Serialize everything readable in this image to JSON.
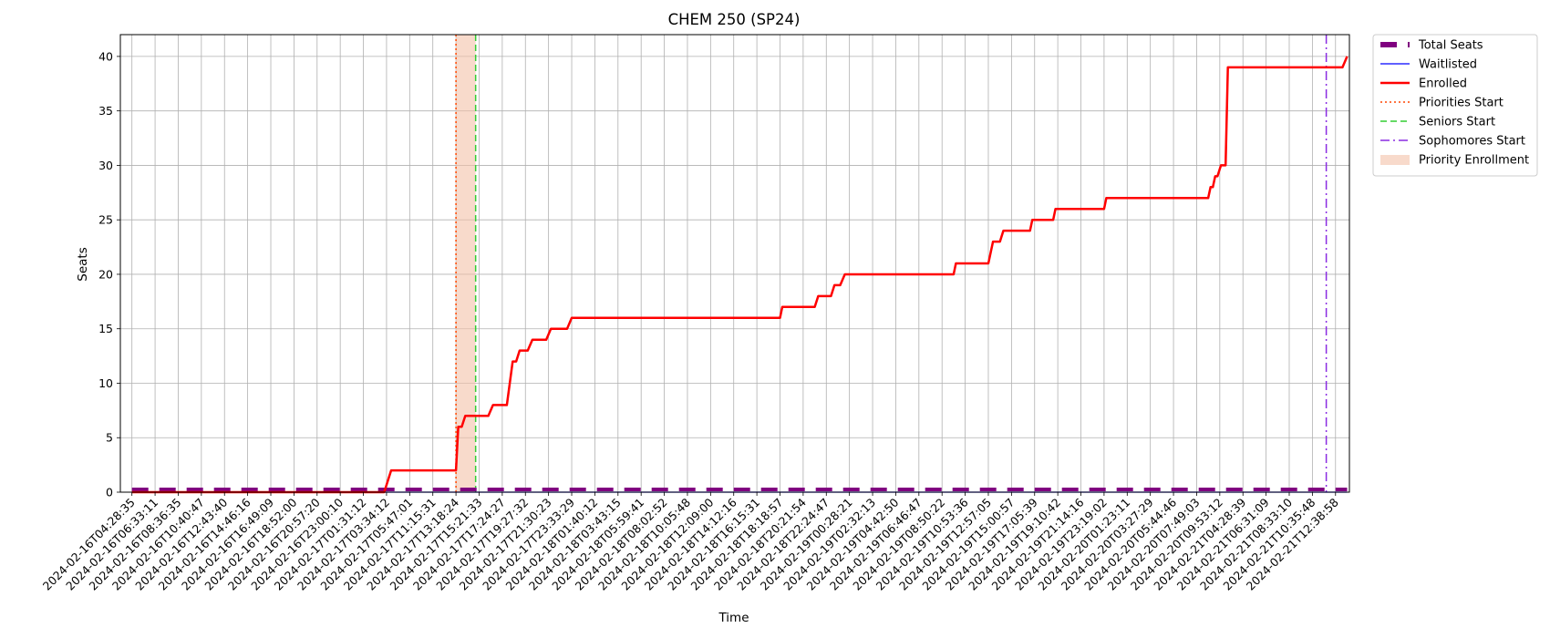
{
  "chart_data": {
    "type": "line",
    "title": "CHEM 250 (SP24)",
    "xlabel": "Time",
    "ylabel": "Seats",
    "ylim": [
      0,
      42
    ],
    "yticks": [
      0,
      5,
      10,
      15,
      20,
      25,
      30,
      35,
      40
    ],
    "grid": true,
    "legend_position": "outside-top-right",
    "x_tick_labels": [
      "2024-02-16T04:28:35",
      "2024-02-16T06:33:11",
      "2024-02-16T08:36:35",
      "2024-02-16T10:40:47",
      "2024-02-16T12:43:40",
      "2024-02-16T14:46:16",
      "2024-02-16T16:49:09",
      "2024-02-16T18:52:00",
      "2024-02-16T20:57:20",
      "2024-02-16T23:00:10",
      "2024-02-17T01:31:12",
      "2024-02-17T03:34:12",
      "2024-02-17T05:47:01",
      "2024-02-17T11:15:31",
      "2024-02-17T13:18:24",
      "2024-02-17T15:21:33",
      "2024-02-17T17:24:27",
      "2024-02-17T19:27:32",
      "2024-02-17T21:30:23",
      "2024-02-17T23:33:29",
      "2024-02-18T01:40:12",
      "2024-02-18T03:43:15",
      "2024-02-18T05:59:41",
      "2024-02-18T08:02:52",
      "2024-02-18T10:05:48",
      "2024-02-18T12:09:00",
      "2024-02-18T14:12:16",
      "2024-02-18T16:15:31",
      "2024-02-18T18:18:57",
      "2024-02-18T20:21:54",
      "2024-02-18T22:24:47",
      "2024-02-19T00:28:21",
      "2024-02-19T02:32:13",
      "2024-02-19T04:42:50",
      "2024-02-19T06:46:47",
      "2024-02-19T08:50:22",
      "2024-02-19T10:53:36",
      "2024-02-19T12:57:05",
      "2024-02-19T15:00:57",
      "2024-02-19T17:05:39",
      "2024-02-19T19:10:42",
      "2024-02-19T21:14:16",
      "2024-02-19T23:19:02",
      "2024-02-20T01:23:11",
      "2024-02-20T03:27:29",
      "2024-02-20T05:44:46",
      "2024-02-20T07:49:03",
      "2024-02-20T09:53:12",
      "2024-02-21T04:28:39",
      "2024-02-21T06:31:09",
      "2024-02-21T08:33:10",
      "2024-02-21T10:35:48",
      "2024-02-21T12:38:58"
    ],
    "series": [
      {
        "name": "Total Seats",
        "color": "#800080",
        "style": "dashed-thick",
        "points": [
          [
            0,
            0.25
          ],
          [
            52.5,
            0.25
          ]
        ]
      },
      {
        "name": "Waitlisted",
        "color": "#0000ff",
        "style": "solid-thin",
        "points": [
          [
            0,
            0
          ],
          [
            52.5,
            0
          ]
        ]
      },
      {
        "name": "Enrolled",
        "color": "#ff0000",
        "style": "solid-thick",
        "points": [
          [
            0,
            0
          ],
          [
            8.0,
            0
          ],
          [
            8.2,
            0
          ],
          [
            8.6,
            0
          ],
          [
            8.9,
            0
          ],
          [
            9.3,
            0
          ],
          [
            9.6,
            0
          ],
          [
            10.0,
            0
          ],
          [
            10.3,
            0
          ],
          [
            10.6,
            0
          ],
          [
            10.9,
            0
          ],
          [
            11.2,
            2
          ],
          [
            14.0,
            2
          ],
          [
            14.1,
            6
          ],
          [
            14.25,
            6
          ],
          [
            14.4,
            7
          ],
          [
            15.4,
            7
          ],
          [
            15.6,
            8
          ],
          [
            16.2,
            8
          ],
          [
            16.45,
            12
          ],
          [
            16.6,
            12
          ],
          [
            16.75,
            13
          ],
          [
            17.1,
            13
          ],
          [
            17.3,
            14
          ],
          [
            17.9,
            14
          ],
          [
            18.1,
            15
          ],
          [
            18.8,
            15
          ],
          [
            19.0,
            16
          ],
          [
            28.0,
            16
          ],
          [
            28.1,
            17
          ],
          [
            29.5,
            17
          ],
          [
            29.65,
            18
          ],
          [
            30.2,
            18
          ],
          [
            30.35,
            19
          ],
          [
            30.6,
            19
          ],
          [
            30.8,
            20
          ],
          [
            35.5,
            20
          ],
          [
            35.6,
            21
          ],
          [
            37.0,
            21
          ],
          [
            37.2,
            23
          ],
          [
            37.5,
            23
          ],
          [
            37.65,
            24
          ],
          [
            38.8,
            24
          ],
          [
            38.9,
            25
          ],
          [
            39.8,
            25
          ],
          [
            39.9,
            26
          ],
          [
            42.0,
            26
          ],
          [
            42.1,
            27
          ],
          [
            46.5,
            27
          ],
          [
            46.6,
            28
          ],
          [
            46.7,
            28
          ],
          [
            46.8,
            29
          ],
          [
            46.9,
            29
          ],
          [
            47.05,
            30
          ],
          [
            47.25,
            30
          ],
          [
            47.35,
            39
          ],
          [
            52.3,
            39
          ],
          [
            52.5,
            40
          ]
        ]
      }
    ],
    "markers": [
      {
        "name": "Priorities Start",
        "color": "#ff4500",
        "style": "dotted",
        "x": 14.0
      },
      {
        "name": "Seniors Start",
        "color": "#32cd32",
        "style": "dashed",
        "x": 14.85
      },
      {
        "name": "Sophomores Start",
        "color": "#8a2be2",
        "style": "dashdot",
        "x": 51.6
      }
    ],
    "shaded_regions": [
      {
        "name": "Priority Enrollment",
        "color": "#f4c2a8",
        "x_start": 14.0,
        "x_end": 14.85
      }
    ]
  }
}
